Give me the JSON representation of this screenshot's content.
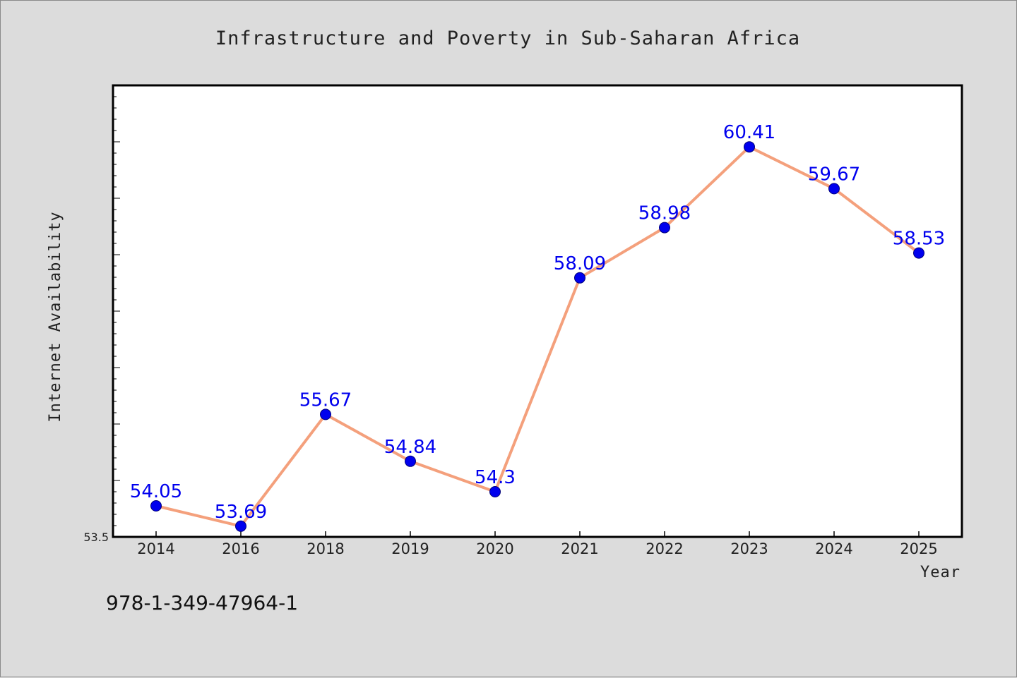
{
  "footnote": "978-1-349-47964-1",
  "colors": {
    "background": "#dcdcdc",
    "plot_background": "#ffffff",
    "line": "#f4a07c",
    "marker": "#0000ee",
    "label": "#0000ee"
  },
  "chart_data": {
    "type": "line",
    "title": "Infrastructure and Poverty in Sub-Saharan Africa",
    "xlabel": "Year",
    "ylabel": "Internet Availability",
    "categories": [
      "2014",
      "2016",
      "2018",
      "2019",
      "2020",
      "2021",
      "2022",
      "2023",
      "2024",
      "2025"
    ],
    "series": [
      {
        "values": [
          54.05,
          53.69,
          55.67,
          54.84,
          54.3,
          58.09,
          58.98,
          60.41,
          59.67,
          58.53
        ],
        "labels": [
          "54.05",
          "53.69",
          "55.67",
          "54.84",
          "54.3",
          "58.09",
          "58.98",
          "60.41",
          "59.67",
          "58.53"
        ]
      }
    ],
    "ylim": [
      53.5,
      61.5
    ],
    "ytick_labels": [
      "53.5"
    ],
    "grid": false,
    "legend": "none"
  }
}
